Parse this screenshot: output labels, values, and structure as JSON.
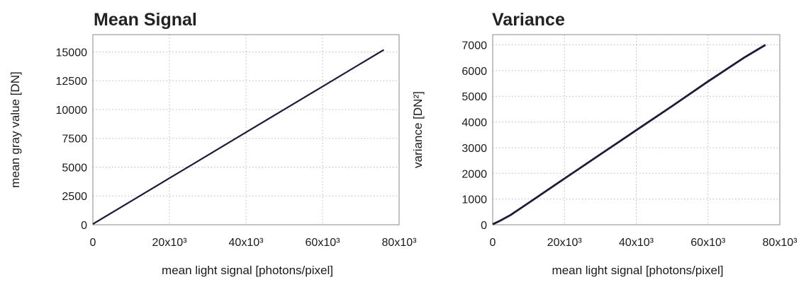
{
  "chart_data": [
    {
      "type": "line",
      "title": "Mean Signal",
      "xlabel": "mean light signal [photons/pixel]",
      "ylabel": "mean gray value [DN]",
      "xlim": [
        0,
        80000
      ],
      "ylim": [
        0,
        16500
      ],
      "xticks": [
        0,
        20000,
        40000,
        60000,
        80000
      ],
      "xtick_labels": [
        "0",
        "20x10³",
        "40x10³",
        "60x10³",
        "80x10³"
      ],
      "yticks": [
        0,
        2500,
        5000,
        7500,
        10000,
        12500,
        15000
      ],
      "ytick_labels": [
        "0",
        "2500",
        "5000",
        "7500",
        "10000",
        "12500",
        "15000"
      ],
      "grid": true,
      "series": [
        {
          "x": [
            0,
            10000,
            20000,
            30000,
            40000,
            50000,
            60000,
            70000,
            76000
          ],
          "y": [
            60,
            2050,
            4040,
            6030,
            8020,
            10010,
            12000,
            13990,
            15180
          ]
        }
      ]
    },
    {
      "type": "line",
      "title": "Variance",
      "xlabel": "mean light signal [photons/pixel]",
      "ylabel": "variance [DN²]",
      "xlim": [
        0,
        80000
      ],
      "ylim": [
        0,
        7400
      ],
      "xticks": [
        0,
        20000,
        40000,
        60000,
        80000
      ],
      "xtick_labels": [
        "0",
        "20x10³",
        "40x10³",
        "60x10³",
        "80x10³"
      ],
      "yticks": [
        0,
        1000,
        2000,
        3000,
        4000,
        5000,
        6000,
        7000
      ],
      "ytick_labels": [
        "0",
        "1000",
        "2000",
        "3000",
        "4000",
        "5000",
        "6000",
        "7000"
      ],
      "grid": true,
      "series": [
        {
          "x": [
            0,
            2000,
            5000,
            10000,
            20000,
            30000,
            40000,
            50000,
            60000,
            70000,
            76000
          ],
          "y": [
            20,
            150,
            380,
            850,
            1800,
            2740,
            3680,
            4620,
            5580,
            6500,
            7000
          ]
        }
      ]
    }
  ]
}
